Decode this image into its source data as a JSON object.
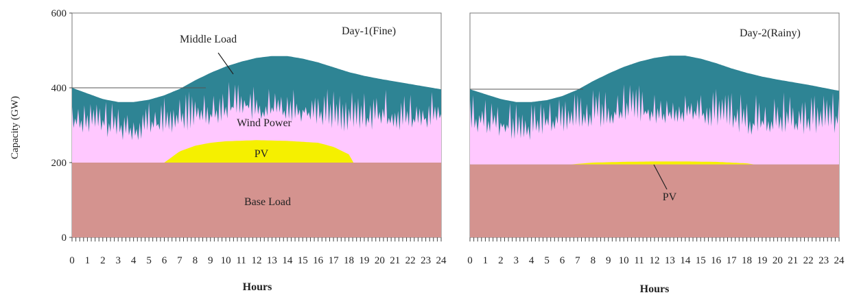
{
  "colors": {
    "base_load": "#d4938f",
    "pv": "#f5f000",
    "wind_power": "#ffc8ff",
    "middle_load": "#2e8494",
    "demand_line": "#555555",
    "axis": "#444444"
  },
  "chart_data": [
    {
      "type": "area",
      "title": "Day-1(Fine)",
      "xlabel": "Hours",
      "ylabel": "Capacity (GW)",
      "xlim": [
        0,
        24
      ],
      "ylim": [
        0,
        600
      ],
      "x_ticks": [
        "0",
        "1",
        "2",
        "3",
        "4",
        "5",
        "6",
        "7",
        "8",
        "9",
        "10",
        "11",
        "12",
        "13",
        "14",
        "15",
        "16",
        "17",
        "18",
        "19",
        "20",
        "21",
        "22",
        "23",
        "24"
      ],
      "y_ticks": [
        "0",
        "200",
        "400",
        "600"
      ],
      "layers": {
        "base_load": {
          "name": "Base Load",
          "value": 200
        },
        "pv": {
          "name": "PV",
          "x": [
            6,
            7,
            8,
            9,
            10,
            12,
            14,
            16,
            17,
            18,
            18.3
          ],
          "y": [
            200,
            230,
            245,
            253,
            257,
            260,
            258,
            253,
            242,
            222,
            200
          ]
        },
        "wind_power": {
          "name": "Wind Power",
          "x": [
            0,
            2,
            3,
            4,
            5,
            6,
            8,
            10,
            11,
            12,
            14,
            16,
            18,
            20,
            22,
            24
          ],
          "y": [
            310,
            300,
            290,
            280,
            300,
            300,
            320,
            340,
            360,
            330,
            340,
            330,
            310,
            320,
            310,
            320
          ]
        },
        "middle_load": {
          "name": "Middle Load",
          "x": [
            0,
            1,
            2,
            3,
            4,
            5,
            6,
            7,
            8,
            9,
            10,
            11,
            12,
            13,
            14,
            15,
            16,
            17,
            18,
            19,
            20,
            21,
            22,
            23,
            24
          ],
          "y": [
            400,
            385,
            370,
            362,
            362,
            368,
            380,
            397,
            420,
            440,
            457,
            470,
            480,
            485,
            485,
            478,
            468,
            455,
            442,
            432,
            424,
            417,
            410,
            403,
            396
          ]
        }
      },
      "annotations": [
        "Middle Load",
        "Wind Power",
        "PV",
        "Base Load"
      ]
    },
    {
      "type": "area",
      "title": "Day-2(Rainy)",
      "xlabel": "Hours",
      "ylabel": "",
      "xlim": [
        0,
        24
      ],
      "ylim": [
        0,
        600
      ],
      "x_ticks": [
        "0",
        "1",
        "2",
        "3",
        "4",
        "5",
        "6",
        "7",
        "8",
        "9",
        "10",
        "11",
        "12",
        "13",
        "14",
        "15",
        "16",
        "17",
        "18",
        "19",
        "20",
        "21",
        "22",
        "23",
        "24"
      ],
      "y_ticks": [],
      "layers": {
        "base_load": {
          "name": "Base Load",
          "value": 195
        },
        "pv": {
          "name": "PV",
          "x": [
            6.5,
            8,
            10,
            12,
            14,
            16,
            18,
            18.5
          ],
          "y": [
            195,
            200,
            202,
            203,
            203,
            202,
            198,
            195
          ]
        },
        "wind_power": {
          "name": "Wind Power",
          "x": [
            0,
            2,
            3,
            4,
            5,
            6,
            8,
            10,
            11,
            12,
            14,
            16,
            18,
            20,
            22,
            24
          ],
          "y": [
            310,
            300,
            285,
            280,
            300,
            310,
            320,
            330,
            340,
            320,
            330,
            320,
            300,
            310,
            300,
            310
          ]
        },
        "middle_load": {
          "name": "Middle Load",
          "x": [
            0,
            1,
            2,
            3,
            4,
            5,
            6,
            7,
            8,
            9,
            10,
            11,
            12,
            13,
            14,
            15,
            16,
            17,
            18,
            19,
            20,
            21,
            22,
            23,
            24
          ],
          "y": [
            396,
            383,
            370,
            362,
            362,
            367,
            378,
            395,
            418,
            438,
            456,
            470,
            480,
            486,
            486,
            478,
            466,
            452,
            440,
            430,
            422,
            415,
            408,
            400,
            392
          ]
        }
      },
      "annotations": [
        "PV"
      ]
    }
  ]
}
